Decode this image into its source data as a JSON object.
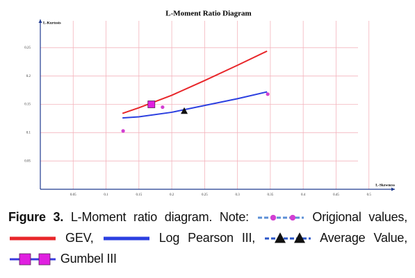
{
  "chart_data": {
    "type": "line",
    "title": "L-Moment Ratio Diagram",
    "x_label": "L-Skewness",
    "y_label": "L-Kurtosis",
    "xlim": [
      0,
      0.55
    ],
    "ylim": [
      0,
      0.3
    ],
    "xticks": [
      0.05,
      0.1,
      0.15,
      0.2,
      0.25,
      0.3,
      0.35,
      0.4,
      0.45,
      0.5
    ],
    "yticks": [
      0.05,
      0.1,
      0.15,
      0.2,
      0.25
    ],
    "grid": true,
    "grid_color": "#f3b4bd",
    "axis_color": "#1f3a8f",
    "caption_label": "Figure 3.",
    "caption_text": "L-Moment ratio diagram. Note:",
    "series": [
      {
        "name": "Origional values,",
        "color": "#d23fd2",
        "marker": "circle",
        "x": [
          0.126,
          0.186,
          0.346
        ],
        "values": [
          0.103,
          0.145,
          0.168
        ]
      },
      {
        "name": "GEV,",
        "color": "#e8262a",
        "marker": "none",
        "x": [
          0.125,
          0.15,
          0.2,
          0.25,
          0.3,
          0.345
        ],
        "values": [
          0.134,
          0.144,
          0.166,
          0.192,
          0.219,
          0.244
        ]
      },
      {
        "name": "Log Pearson III,",
        "color": "#2b3fe0",
        "marker": "none",
        "x": [
          0.125,
          0.15,
          0.2,
          0.25,
          0.3,
          0.345
        ],
        "values": [
          0.126,
          0.128,
          0.136,
          0.148,
          0.16,
          0.172
        ]
      },
      {
        "name": "Average Value,",
        "color": "#111111",
        "marker": "triangle",
        "x": [
          0.219
        ],
        "values": [
          0.138
        ]
      },
      {
        "name": "Gumbel III",
        "color": "#e020e0",
        "marker": "square",
        "x": [
          0.169
        ],
        "values": [
          0.15
        ]
      }
    ]
  }
}
